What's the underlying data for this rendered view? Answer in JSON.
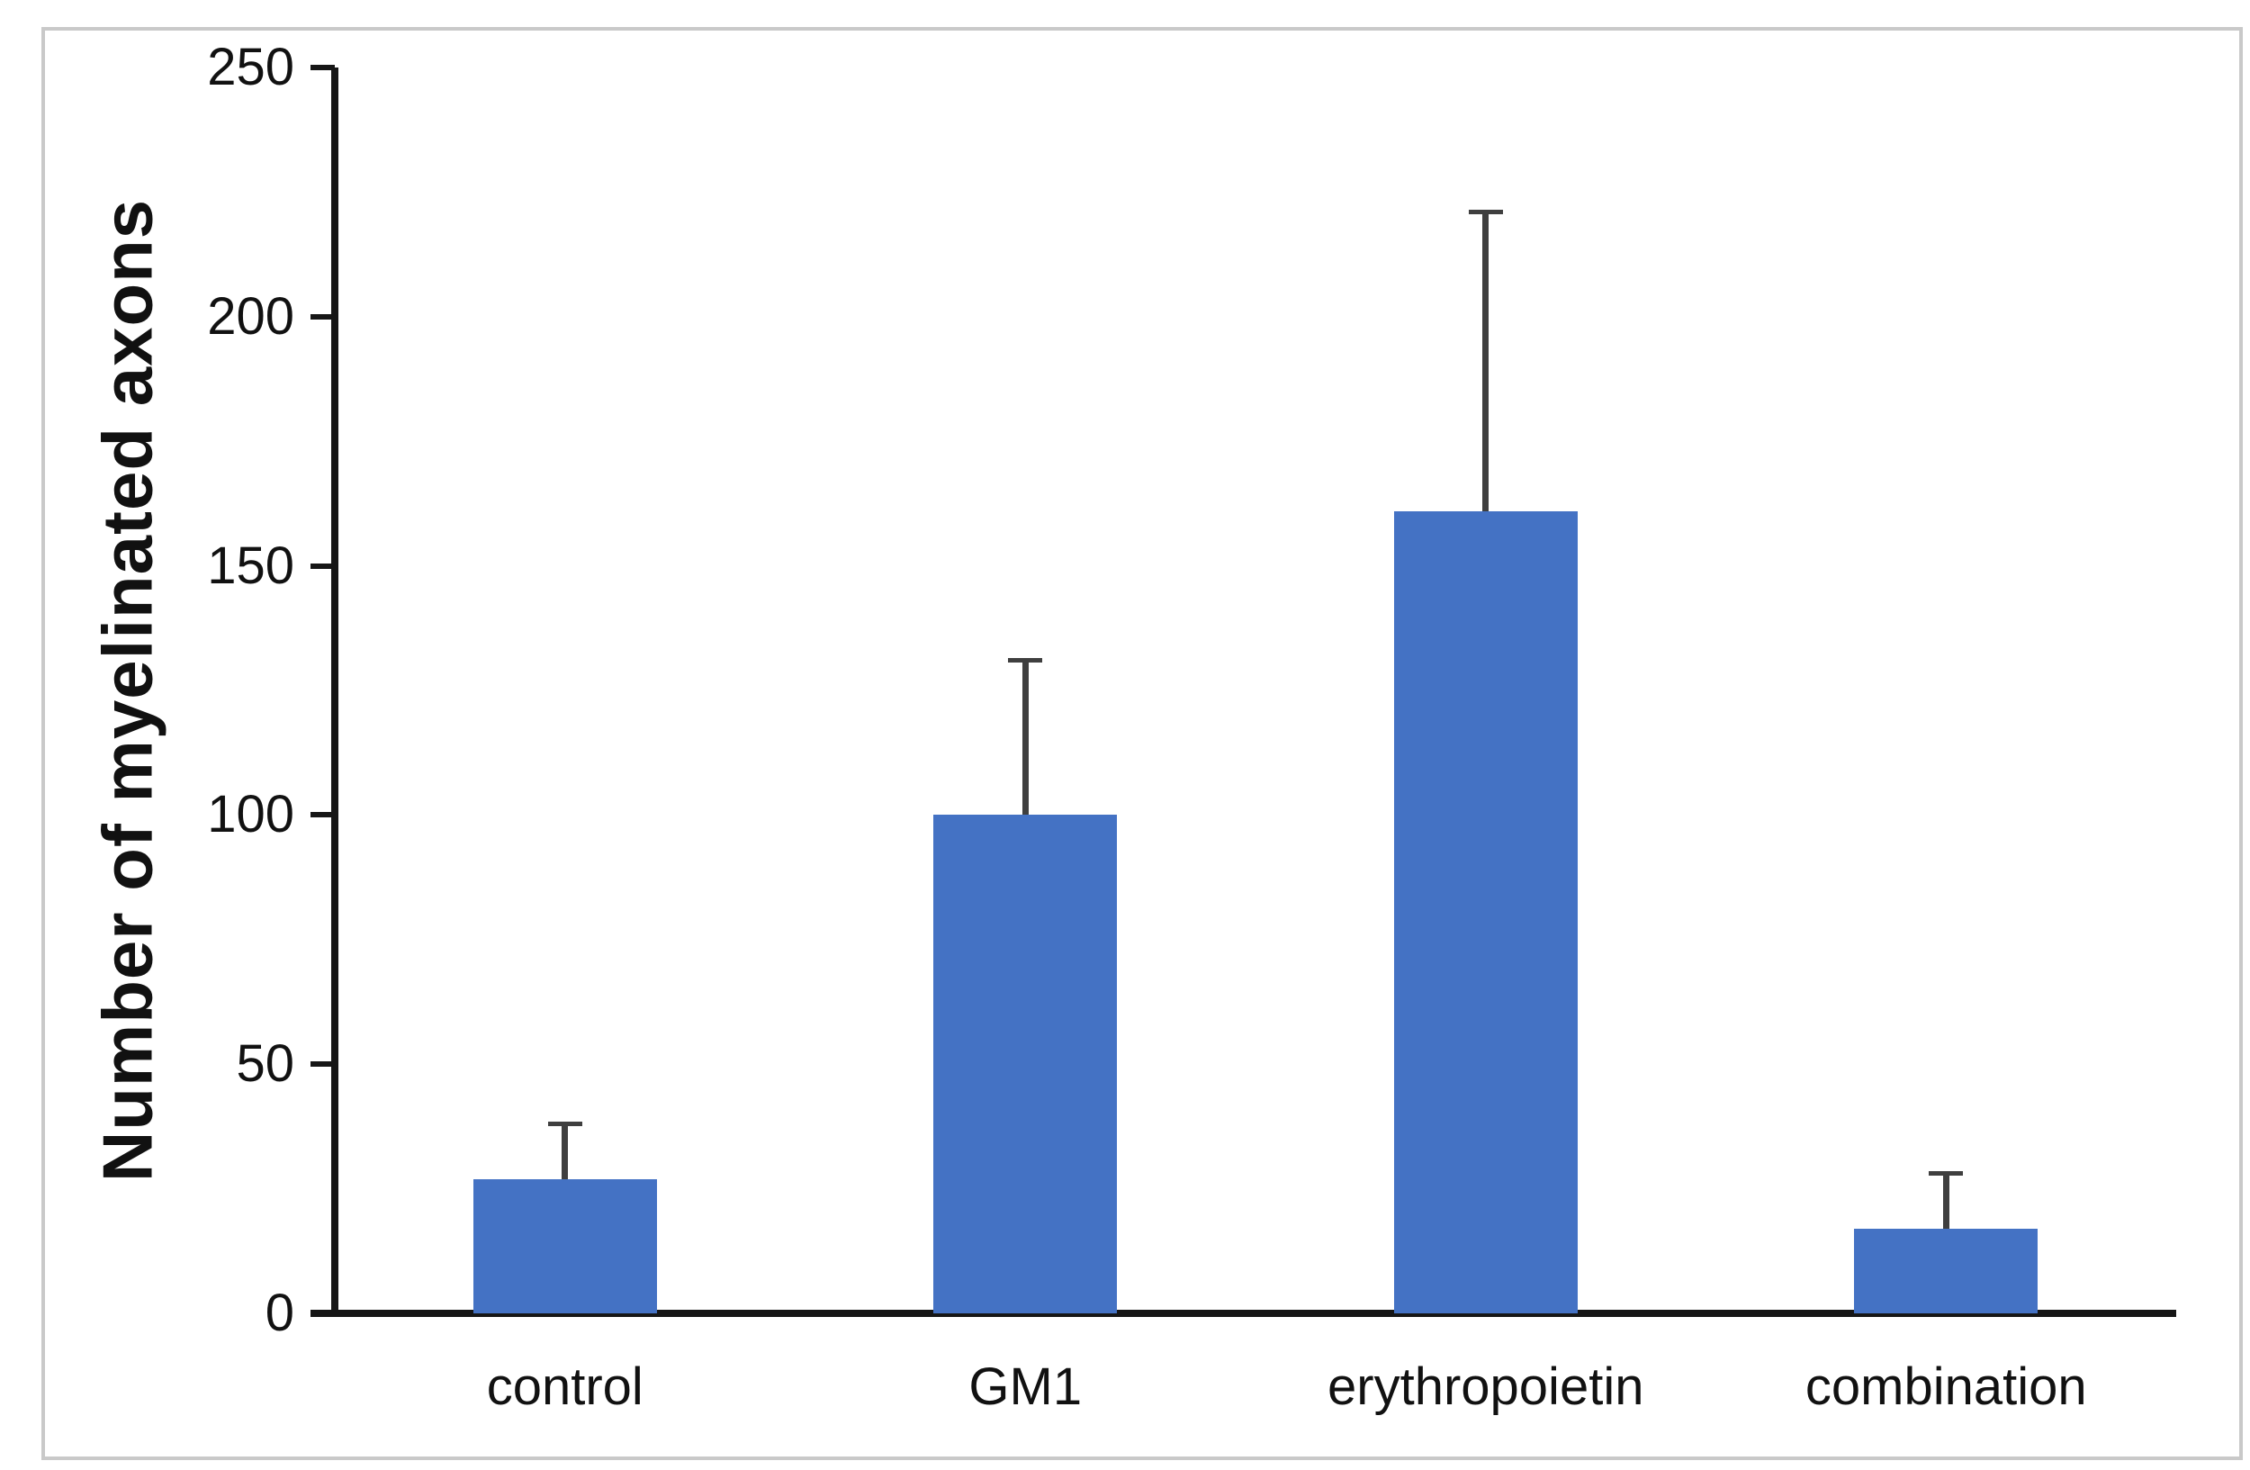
{
  "figure": {
    "background_color": "#ffffff",
    "frame_border_color": "#c9c9c9"
  },
  "chart_data": {
    "type": "bar",
    "categories": [
      "control",
      "GM1",
      "erythropoietin",
      "combination"
    ],
    "values": [
      27,
      100,
      161,
      17
    ],
    "errors_plus": [
      11,
      31,
      60,
      11
    ],
    "error_tops": [
      38,
      131,
      221,
      28
    ],
    "title": "",
    "xlabel": "",
    "ylabel": "Number of myelinated axons",
    "ylim": [
      0,
      250
    ],
    "yticks": [
      0,
      50,
      100,
      150,
      200,
      250
    ],
    "grid": false,
    "legend": false,
    "bar_color": "#4472C4",
    "error_bar_color": "#3f3f3f",
    "axis_color": "#161616",
    "text_color": "#111111"
  }
}
